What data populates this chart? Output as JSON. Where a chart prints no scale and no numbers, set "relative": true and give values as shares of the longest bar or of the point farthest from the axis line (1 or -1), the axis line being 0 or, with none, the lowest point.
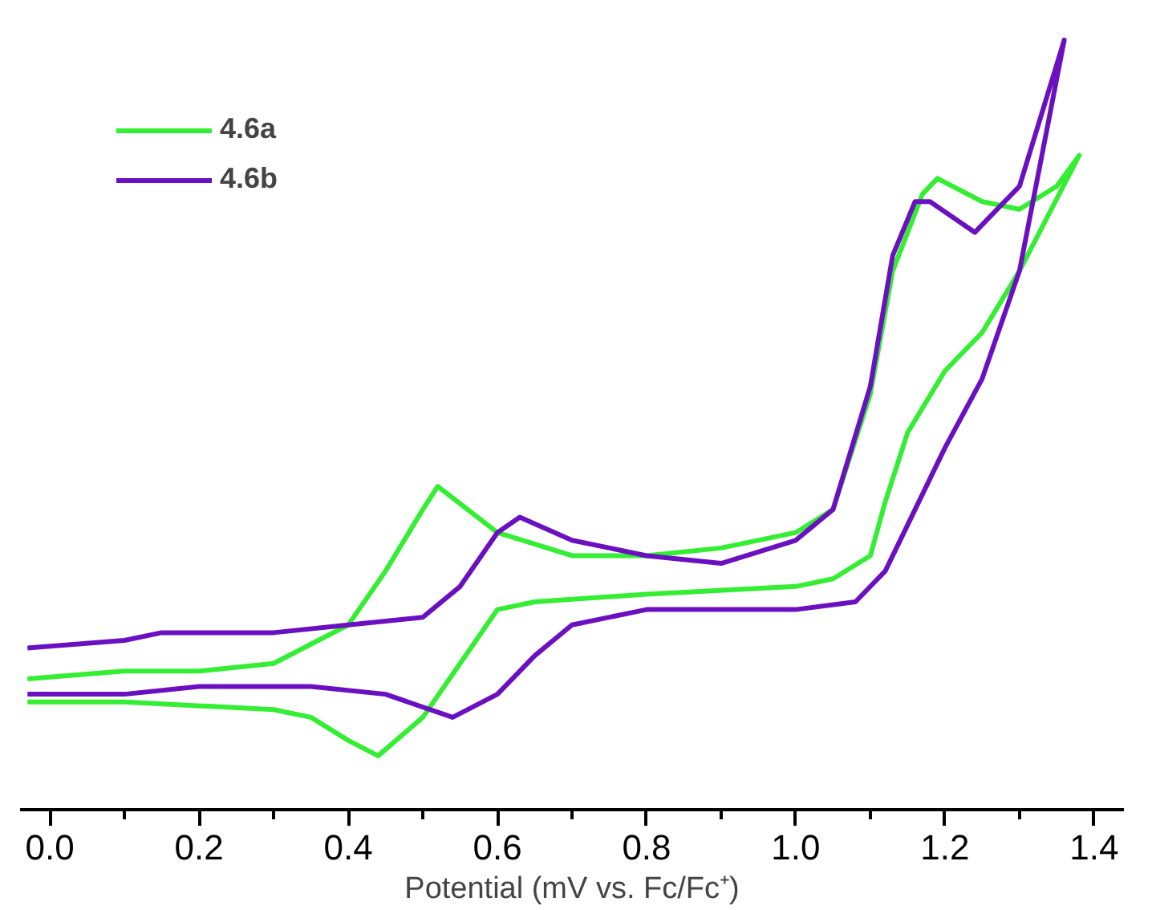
{
  "chart_data": {
    "type": "line",
    "relative": true,
    "xlabel": "Potential (mV vs. Fc/Fc⁺)",
    "xlim": [
      -0.04,
      1.44
    ],
    "xticks": [
      {
        "value": 0.0,
        "label": "0.0"
      },
      {
        "value": 0.1,
        "label": null
      },
      {
        "value": 0.2,
        "label": "0.2"
      },
      {
        "value": 0.3,
        "label": null
      },
      {
        "value": 0.4,
        "label": "0.4"
      },
      {
        "value": 0.5,
        "label": null
      },
      {
        "value": 0.6,
        "label": "0.6"
      },
      {
        "value": 0.7,
        "label": null
      },
      {
        "value": 0.8,
        "label": "0.8"
      },
      {
        "value": 0.9,
        "label": null
      },
      {
        "value": 1.0,
        "label": "1.0"
      },
      {
        "value": 1.1,
        "label": null
      },
      {
        "value": 1.2,
        "label": "1.2"
      },
      {
        "value": 1.3,
        "label": null
      },
      {
        "value": 1.4,
        "label": "1.4"
      }
    ],
    "tick_labels": "x",
    "grid": false,
    "legend": "top left",
    "marker": "none",
    "line_style": "solid",
    "series": [
      {
        "name": "4.6a",
        "color": "#33ee33",
        "x": [
          -0.03,
          0.1,
          0.2,
          0.3,
          0.4,
          0.45,
          0.5,
          0.52,
          0.56,
          0.6,
          0.7,
          0.8,
          0.9,
          1.0,
          1.05,
          1.1,
          1.13,
          1.17,
          1.19,
          1.25,
          1.3,
          1.35,
          1.38,
          1.3,
          1.25,
          1.2,
          1.15,
          1.12,
          1.1,
          1.05,
          1.0,
          0.8,
          0.65,
          0.6,
          0.55,
          0.5,
          0.44,
          0.4,
          0.35,
          0.3,
          0.1,
          -0.03
        ],
        "values": [
          0.17,
          0.18,
          0.18,
          0.19,
          0.24,
          0.31,
          0.39,
          0.42,
          0.39,
          0.36,
          0.33,
          0.33,
          0.34,
          0.36,
          0.39,
          0.54,
          0.7,
          0.8,
          0.82,
          0.79,
          0.78,
          0.81,
          0.85,
          0.7,
          0.62,
          0.57,
          0.49,
          0.4,
          0.33,
          0.3,
          0.29,
          0.28,
          0.27,
          0.26,
          0.19,
          0.12,
          0.07,
          0.09,
          0.12,
          0.13,
          0.14,
          0.14
        ]
      },
      {
        "name": "4.6b",
        "color": "#6a10c0",
        "x": [
          -0.03,
          0.1,
          0.15,
          0.3,
          0.4,
          0.5,
          0.55,
          0.6,
          0.63,
          0.7,
          0.8,
          0.9,
          1.0,
          1.05,
          1.1,
          1.13,
          1.16,
          1.18,
          1.24,
          1.3,
          1.36,
          1.3,
          1.25,
          1.2,
          1.15,
          1.12,
          1.08,
          1.0,
          0.8,
          0.7,
          0.65,
          0.6,
          0.54,
          0.45,
          0.35,
          0.2,
          0.1,
          -0.03
        ],
        "values": [
          0.21,
          0.22,
          0.23,
          0.23,
          0.24,
          0.25,
          0.29,
          0.36,
          0.38,
          0.35,
          0.33,
          0.32,
          0.35,
          0.39,
          0.55,
          0.72,
          0.79,
          0.79,
          0.75,
          0.81,
          1.0,
          0.7,
          0.56,
          0.47,
          0.37,
          0.31,
          0.27,
          0.26,
          0.26,
          0.24,
          0.2,
          0.15,
          0.12,
          0.15,
          0.16,
          0.16,
          0.15,
          0.15
        ]
      }
    ]
  }
}
